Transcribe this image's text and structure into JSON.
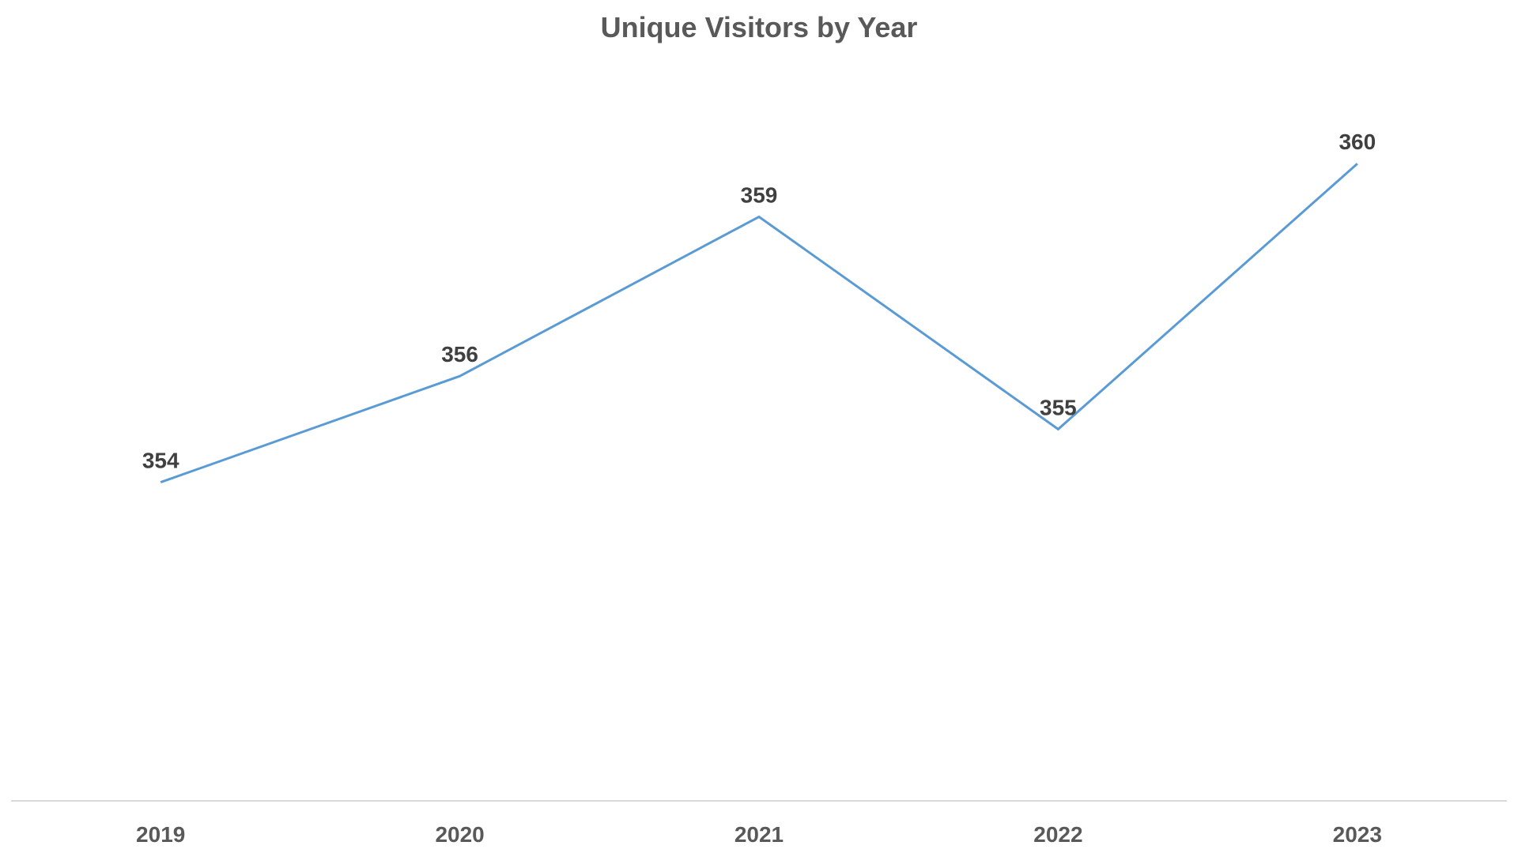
{
  "chart_data": {
    "type": "line",
    "title": "Unique Visitors by Year",
    "xlabel": "",
    "ylabel": "",
    "categories": [
      "2019",
      "2020",
      "2021",
      "2022",
      "2023"
    ],
    "series": [
      {
        "values": [
          354,
          356,
          359,
          355,
          360
        ],
        "color": "#5b9bd5"
      }
    ],
    "data_labels": [
      "354",
      "356",
      "359",
      "355",
      "360"
    ],
    "ylim": [
      348,
      361
    ],
    "grid": false,
    "legend": "none",
    "axis_color": "#d9d9d9"
  }
}
